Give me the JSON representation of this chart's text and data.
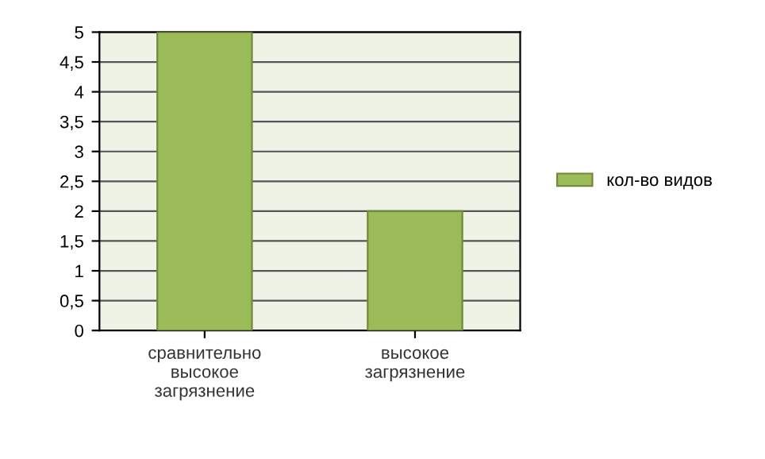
{
  "chart_data": {
    "type": "bar",
    "categories": [
      "сравнительно\nвысокое\nзагрязнение",
      "высокое\nзагрязнение"
    ],
    "series": [
      {
        "name": "кол-во видов",
        "color": "#9bbb59",
        "values": [
          5,
          2
        ]
      }
    ],
    "ylim": [
      0,
      5
    ],
    "yticks": [
      0,
      {
        "value": 0.5,
        "label": "0,5"
      },
      1,
      {
        "value": 1.5,
        "label": "1,5"
      },
      2,
      {
        "value": 2.5,
        "label": "2,5"
      },
      3,
      {
        "value": 3.5,
        "label": "3,5"
      },
      4,
      {
        "value": 4.5,
        "label": "4,5"
      },
      5
    ],
    "grid": "y",
    "legend": "right"
  }
}
